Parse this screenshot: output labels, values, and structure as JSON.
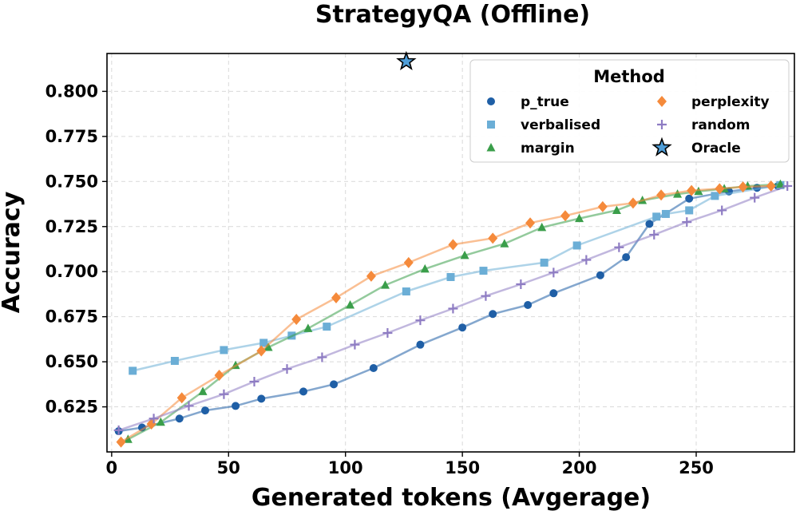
{
  "chart_data": {
    "type": "line",
    "title": "StrategyQA (Offline)",
    "xlabel": "Generated tokens (Avgerage)",
    "ylabel": "Accuracy",
    "xlim": [
      -2,
      292
    ],
    "ylim": [
      0.6,
      0.821
    ],
    "xticks": [
      0,
      50,
      100,
      150,
      200,
      250
    ],
    "yticks": [
      0.625,
      0.65,
      0.675,
      0.7,
      0.725,
      0.75,
      0.775,
      0.8
    ],
    "xtick_labels": [
      "0",
      "50",
      "100",
      "150",
      "200",
      "250"
    ],
    "ytick_labels": [
      "0.625",
      "0.650",
      "0.675",
      "0.700",
      "0.725",
      "0.750",
      "0.775",
      "0.800"
    ],
    "grid": true,
    "legend": {
      "title": "Method",
      "position": "top-right",
      "columns": 2
    },
    "series": [
      {
        "name": "p_true",
        "color": "#1f5fa6",
        "marker": "circle",
        "x": [
          3,
          13,
          29,
          40,
          53,
          64,
          82,
          95,
          112,
          132,
          150,
          163,
          178,
          189,
          209,
          220,
          230,
          247,
          264,
          276,
          285
        ],
        "y": [
          0.6115,
          0.6135,
          0.6185,
          0.623,
          0.6255,
          0.6295,
          0.6335,
          0.6375,
          0.6465,
          0.6595,
          0.669,
          0.6765,
          0.6815,
          0.688,
          0.698,
          0.708,
          0.7265,
          0.7405,
          0.7445,
          0.7465,
          0.7475
        ]
      },
      {
        "name": "verbalised",
        "color": "#6baed6",
        "marker": "square",
        "x": [
          9,
          27,
          48,
          65,
          77,
          92,
          126,
          145,
          159,
          185,
          199,
          233,
          237,
          247,
          258,
          286
        ],
        "y": [
          0.645,
          0.6505,
          0.6565,
          0.6605,
          0.6645,
          0.6695,
          0.689,
          0.697,
          0.7005,
          0.705,
          0.7145,
          0.7305,
          0.732,
          0.734,
          0.742,
          0.748
        ]
      },
      {
        "name": "margin",
        "color": "#3a9e4a",
        "marker": "triangle",
        "x": [
          7,
          21,
          39,
          53,
          67,
          84,
          102,
          117,
          134,
          151,
          168,
          184,
          200,
          216,
          227,
          242,
          251,
          262,
          272,
          286
        ],
        "y": [
          0.607,
          0.6165,
          0.6335,
          0.648,
          0.658,
          0.6685,
          0.6815,
          0.6925,
          0.7015,
          0.709,
          0.7155,
          0.7245,
          0.7295,
          0.734,
          0.7395,
          0.743,
          0.7445,
          0.746,
          0.7475,
          0.7485
        ]
      },
      {
        "name": "perplexity",
        "color": "#f58a3b",
        "marker": "diamond",
        "x": [
          4,
          17,
          30,
          46,
          64,
          79,
          96,
          111,
          127,
          146,
          163,
          179,
          194,
          210,
          223,
          235,
          248,
          260,
          270,
          282
        ],
        "y": [
          0.6055,
          0.6155,
          0.63,
          0.6425,
          0.656,
          0.6735,
          0.6855,
          0.6975,
          0.705,
          0.715,
          0.7185,
          0.727,
          0.731,
          0.736,
          0.738,
          0.7425,
          0.745,
          0.746,
          0.747,
          0.7475
        ]
      },
      {
        "name": "random",
        "color": "#8e7cc3",
        "marker": "plus",
        "x": [
          3,
          18,
          33,
          48,
          61,
          75,
          90,
          104,
          118,
          132,
          146,
          160,
          175,
          189,
          203,
          217,
          232,
          246,
          261,
          275,
          289
        ],
        "y": [
          0.612,
          0.6185,
          0.6255,
          0.632,
          0.639,
          0.646,
          0.6525,
          0.6595,
          0.666,
          0.673,
          0.6795,
          0.6865,
          0.693,
          0.6995,
          0.7065,
          0.7135,
          0.7205,
          0.7275,
          0.734,
          0.741,
          0.7475
        ]
      },
      {
        "name": "Oracle",
        "color": "#4f9ed8",
        "marker": "star",
        "x": [
          126
        ],
        "y": [
          0.8165
        ]
      }
    ]
  }
}
